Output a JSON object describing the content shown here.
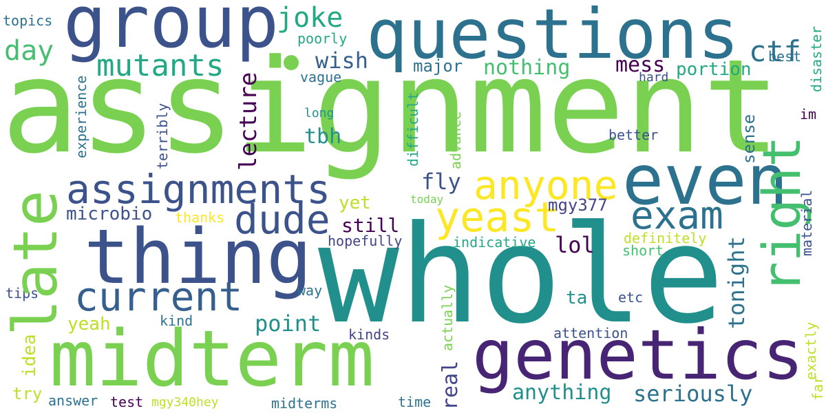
{
  "words": {
    "assignment": "assignment",
    "whole": "whole",
    "midterm": "midterm",
    "questions": "questions",
    "group": "group",
    "thing": "thing",
    "genetics": "genetics",
    "late": "late",
    "even": "even",
    "assignments": "assignments",
    "anyone": "anyone",
    "yeast": "yeast",
    "current": "current",
    "dude": "dude",
    "exam": "exam",
    "right": "right",
    "mutants": "mutants",
    "ctf": "ctf",
    "joke": "joke",
    "day": "day",
    "wish": "wish",
    "nothing": "nothing",
    "mess": "mess",
    "portion": "portion",
    "major": "major",
    "lecture": "lecture",
    "tbh": "tbh",
    "sense": "sense",
    "tonight": "tonight",
    "point": "point",
    "anything": "anything",
    "seriously": "seriously",
    "fly": "fly",
    "mgy377": "mgy377",
    "lol": "lol",
    "still": "still",
    "yet": "yet",
    "microbio": "microbio",
    "idea": "idea",
    "real": "real",
    "ta": "ta",
    "yeah": "yeah",
    "topics": "topics",
    "poorly": "poorly",
    "vague": "vague",
    "experience": "experience",
    "terribly": "terribly",
    "long": "long",
    "difficult": "difficult",
    "advance": "advance",
    "hard": "hard",
    "best": "best",
    "disaster": "disaster",
    "im": "im",
    "better": "better",
    "today": "today",
    "thanks": "thanks",
    "hopefully": "hopefully",
    "indicative": "indicative",
    "definitely": "definitely",
    "short": "short",
    "material": "material",
    "tips": "tips",
    "way": "way",
    "actually": "actually",
    "etc": "etc",
    "kind": "kind",
    "kinds": "kinds",
    "attention": "attention",
    "exactly": "exactly",
    "far": "far",
    "try": "try",
    "answer": "answer",
    "test": "test",
    "mgy340hey": "mgy340hey",
    "midterms": "midterms",
    "time": "time"
  },
  "palette": {
    "dark_purple": "#440154",
    "purple": "#482475",
    "indigo": "#414487",
    "slate_blue": "#3b528b",
    "blue": "#355f8d",
    "steel": "#2c728e",
    "teal": "#21908d",
    "sea_green": "#22a884",
    "green": "#44bf70",
    "light_green": "#7ad151",
    "lime": "#bddf26",
    "yellow": "#fde725"
  }
}
